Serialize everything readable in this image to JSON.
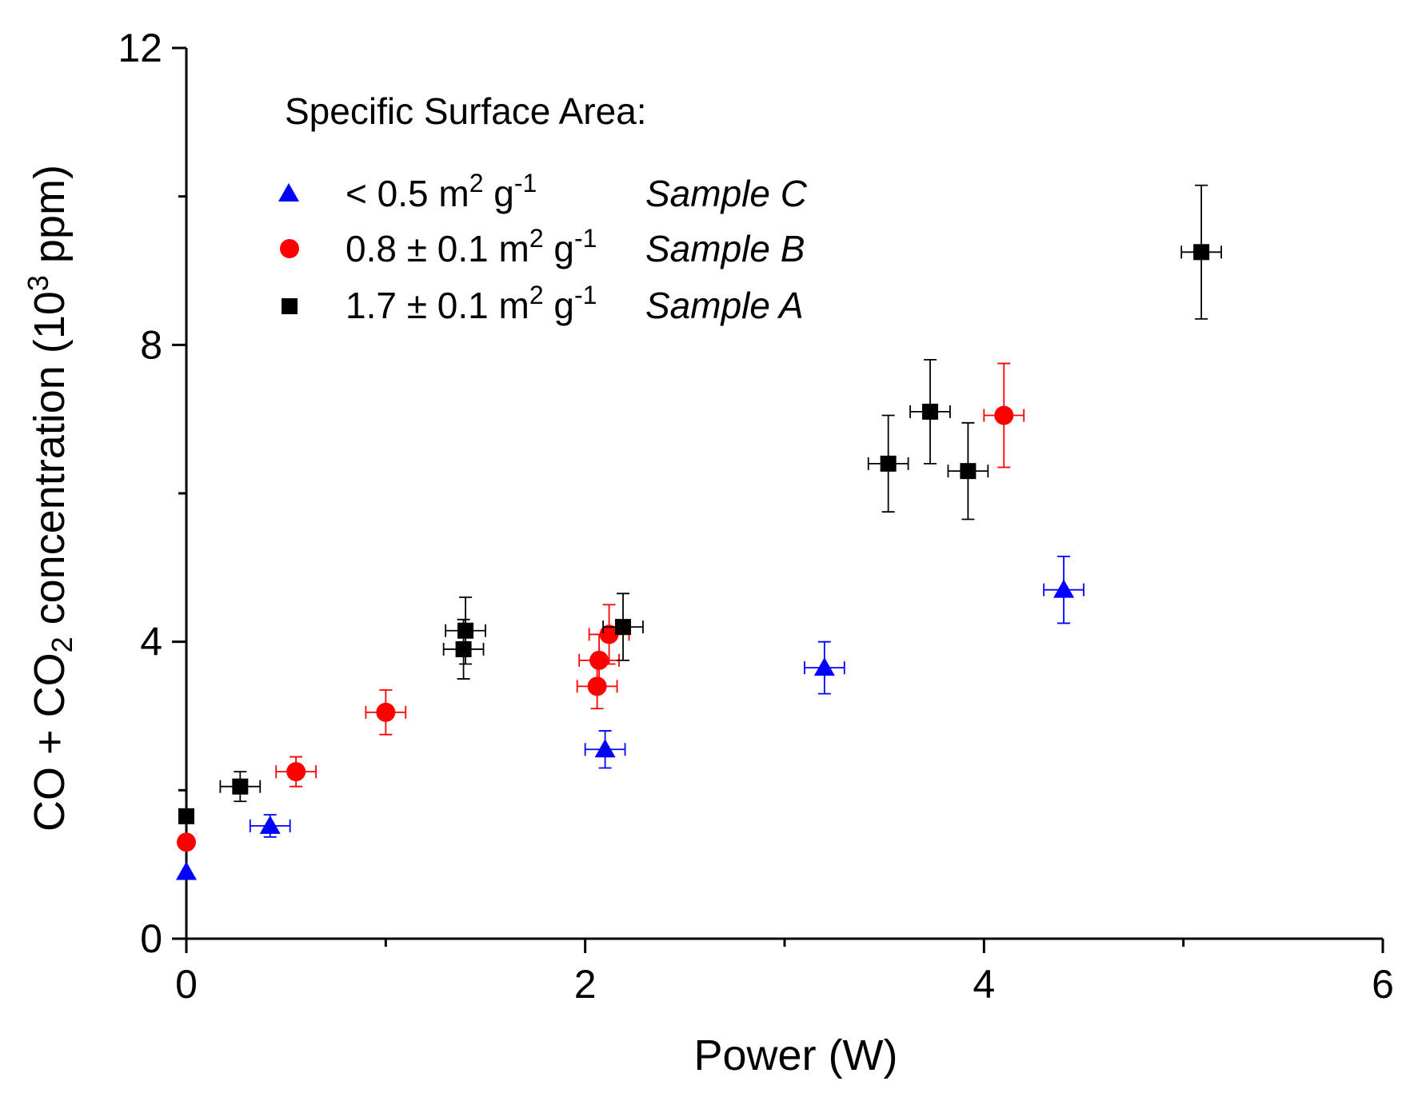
{
  "chart_data": {
    "type": "scatter",
    "xlabel": "Power (W)",
    "ylabel_parts": {
      "a": "CO + CO",
      "sub": "2",
      "b": " concentration (10",
      "sup": "3",
      "c": " ppm)"
    },
    "xlim": [
      0,
      6
    ],
    "ylim": [
      0,
      12
    ],
    "xticks": [
      0,
      2,
      4,
      6
    ],
    "yticks": [
      0,
      4,
      8,
      12
    ],
    "x_minor_ticks": [
      1,
      3,
      5
    ],
    "y_minor_ticks": [
      2,
      6,
      10
    ],
    "grid": false,
    "legend": {
      "title": "Specific Surface Area:",
      "placement": "top-left",
      "entries": [
        {
          "series": "C",
          "label": {
            "pre": "< 0.5 m",
            "sup1": "2",
            "mid": " g",
            "sup2": "-1"
          },
          "sample": "Sample C"
        },
        {
          "series": "B",
          "label": {
            "pre": "0.8 ± 0.1 m",
            "sup1": "2",
            "mid": " g",
            "sup2": "-1"
          },
          "sample": "Sample B"
        },
        {
          "series": "A",
          "label": {
            "pre": "1.7 ± 0.1 m",
            "sup1": "2",
            "mid": " g",
            "sup2": "-1"
          },
          "sample": "Sample A"
        }
      ]
    },
    "series": [
      {
        "name": "Sample C",
        "key": "C",
        "marker": "triangle",
        "color": "#0000ff",
        "points": [
          {
            "x": 0.0,
            "y": 0.9,
            "xerr": 0.0,
            "yerr": 0.0
          },
          {
            "x": 0.42,
            "y": 1.52,
            "xerr": 0.1,
            "yerr": 0.15
          },
          {
            "x": 2.1,
            "y": 2.55,
            "xerr": 0.1,
            "yerr": 0.25
          },
          {
            "x": 3.2,
            "y": 3.65,
            "xerr": 0.1,
            "yerr": 0.35
          },
          {
            "x": 4.4,
            "y": 4.7,
            "xerr": 0.1,
            "yerr": 0.45
          }
        ]
      },
      {
        "name": "Sample B",
        "key": "B",
        "marker": "circle",
        "color": "#ff0000",
        "points": [
          {
            "x": 0.0,
            "y": 1.3,
            "xerr": 0.0,
            "yerr": 0.0
          },
          {
            "x": 0.55,
            "y": 2.25,
            "xerr": 0.1,
            "yerr": 0.2
          },
          {
            "x": 1.0,
            "y": 3.05,
            "xerr": 0.1,
            "yerr": 0.3
          },
          {
            "x": 2.06,
            "y": 3.4,
            "xerr": 0.1,
            "yerr": 0.3
          },
          {
            "x": 2.07,
            "y": 3.75,
            "xerr": 0.1,
            "yerr": 0.35
          },
          {
            "x": 2.12,
            "y": 4.1,
            "xerr": 0.1,
            "yerr": 0.4
          },
          {
            "x": 4.1,
            "y": 7.05,
            "xerr": 0.1,
            "yerr": 0.7
          }
        ]
      },
      {
        "name": "Sample A",
        "key": "A",
        "marker": "square",
        "color": "#000000",
        "points": [
          {
            "x": 0.0,
            "y": 1.65,
            "xerr": 0.0,
            "yerr": 0.0
          },
          {
            "x": 0.27,
            "y": 2.05,
            "xerr": 0.1,
            "yerr": 0.2
          },
          {
            "x": 1.39,
            "y": 3.9,
            "xerr": 0.1,
            "yerr": 0.4
          },
          {
            "x": 1.4,
            "y": 4.15,
            "xerr": 0.1,
            "yerr": 0.45
          },
          {
            "x": 2.19,
            "y": 4.2,
            "xerr": 0.1,
            "yerr": 0.45
          },
          {
            "x": 3.52,
            "y": 6.4,
            "xerr": 0.1,
            "yerr": 0.65
          },
          {
            "x": 3.73,
            "y": 7.1,
            "xerr": 0.1,
            "yerr": 0.7
          },
          {
            "x": 3.92,
            "y": 6.3,
            "xerr": 0.1,
            "yerr": 0.65
          },
          {
            "x": 5.09,
            "y": 9.25,
            "xerr": 0.1,
            "yerr": 0.9
          }
        ]
      }
    ]
  }
}
